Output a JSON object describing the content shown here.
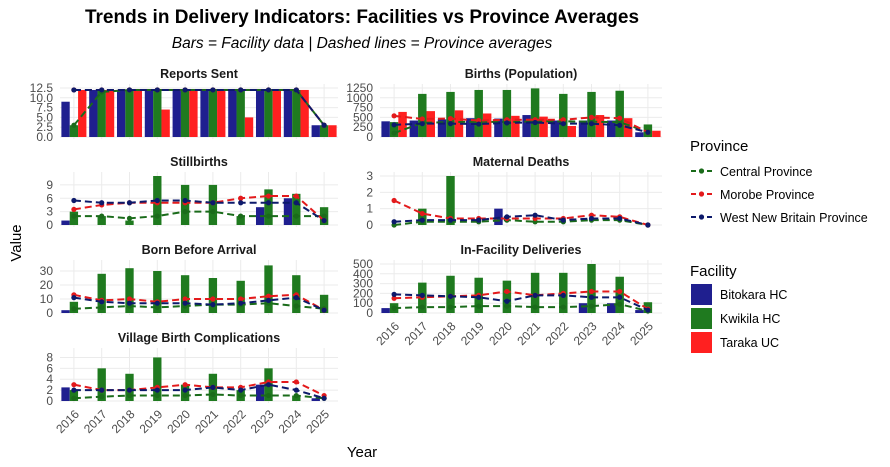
{
  "chart_data": {
    "type": "bar",
    "title": "Trends in Delivery Indicators: Facilities vs Province Averages",
    "subtitle": "Bars = Facility data | Dashed lines = Province averages",
    "xlabel": "Year",
    "ylabel": "Value",
    "years": [
      "2016",
      "2017",
      "2018",
      "2019",
      "2020",
      "2021",
      "2022",
      "2023",
      "2024",
      "2025"
    ],
    "legend_province_title": "Province",
    "legend_facility_title": "Facility",
    "provinces": [
      {
        "name": "Central Province",
        "color": "#1a6b1a"
      },
      {
        "name": "Morobe Province",
        "color": "#e31a1c"
      },
      {
        "name": "West New Britain Province",
        "color": "#0d1a6b"
      }
    ],
    "facilities": [
      {
        "name": "Bitokara HC",
        "color": "#1f1f8f"
      },
      {
        "name": "Kwikila HC",
        "color": "#1f7a1f"
      },
      {
        "name": "Taraka UC",
        "color": "#ff2020"
      }
    ],
    "panels": [
      {
        "title": "Reports Sent",
        "ylim": [
          0,
          12.5
        ],
        "yticks": [
          "0.0",
          "2.5",
          "5.0",
          "7.5",
          "10.0",
          "12.5"
        ],
        "bars": {
          "Bitokara HC": [
            9,
            12,
            12,
            12,
            12,
            12,
            12,
            12,
            12,
            3
          ],
          "Kwikila HC": [
            3,
            12,
            12,
            12,
            12,
            12,
            12,
            12,
            12,
            3
          ],
          "Taraka UC": [
            12,
            12,
            12,
            7,
            12,
            12,
            5,
            12,
            12,
            3
          ]
        },
        "lines": {
          "Central Province": [
            3,
            11.5,
            12,
            12,
            12,
            12,
            12,
            12,
            12,
            3
          ],
          "Morobe Province": [
            12,
            12,
            12,
            12,
            12,
            12,
            12,
            12,
            12,
            3
          ],
          "West New Britain Province": [
            12,
            12,
            12,
            12,
            12,
            12,
            12,
            12,
            12,
            3
          ]
        }
      },
      {
        "title": "Births (Population)",
        "ylim": [
          0,
          1250
        ],
        "yticks": [
          "0",
          "250",
          "500",
          "750",
          "1000",
          "1250"
        ],
        "bars": {
          "Bitokara HC": [
            400,
            420,
            450,
            480,
            470,
            560,
            420,
            420,
            420,
            120
          ],
          "Kwikila HC": [
            380,
            1100,
            1150,
            1200,
            1200,
            1240,
            1100,
            1150,
            1180,
            320
          ],
          "Taraka UC": [
            640,
            660,
            680,
            600,
            540,
            520,
            280,
            560,
            480,
            160
          ]
        },
        "lines": {
          "Central Province": [
            100,
            360,
            380,
            390,
            380,
            400,
            400,
            390,
            380,
            130
          ],
          "Morobe Province": [
            540,
            460,
            470,
            420,
            440,
            440,
            440,
            500,
            480,
            120
          ],
          "West New Britain Province": [
            310,
            340,
            340,
            330,
            360,
            370,
            340,
            340,
            300,
            120
          ]
        }
      },
      {
        "title": "Stillbirths",
        "ylim": [
          0,
          11
        ],
        "yticks": [
          "0",
          "3",
          "6",
          "9"
        ],
        "bars": {
          "Bitokara HC": [
            1,
            0,
            0,
            0,
            0,
            0,
            0,
            4,
            6,
            0
          ],
          "Kwikila HC": [
            3,
            2,
            1,
            11,
            9,
            9,
            2,
            8,
            7,
            4
          ],
          "Taraka UC": [
            0,
            0,
            0,
            0,
            0,
            0,
            0,
            0,
            0,
            0
          ]
        },
        "lines": {
          "Central Province": [
            2,
            2,
            1.5,
            2,
            3,
            3,
            2,
            2,
            2,
            2
          ],
          "Morobe Province": [
            3.5,
            4.5,
            5,
            5,
            5,
            5,
            6,
            6.5,
            6.5,
            1
          ],
          "West New Britain Province": [
            5.5,
            5,
            5,
            5.5,
            5.5,
            5,
            5,
            5,
            5,
            1
          ]
        }
      },
      {
        "title": "Maternal Deaths",
        "ylim": [
          0,
          3
        ],
        "yticks": [
          "0",
          "1",
          "2",
          "3"
        ],
        "bars": {
          "Bitokara HC": [
            0,
            0,
            0,
            0,
            1,
            0,
            0,
            0,
            0,
            0
          ],
          "Kwikila HC": [
            0,
            1,
            3,
            0,
            0,
            0,
            0,
            0,
            0,
            0
          ],
          "Taraka UC": [
            0,
            0,
            0,
            0,
            0,
            0,
            0,
            0,
            0,
            0
          ]
        },
        "lines": {
          "Central Province": [
            0,
            0.2,
            0.2,
            0.2,
            0.3,
            0.2,
            0.2,
            0.3,
            0.3,
            0
          ],
          "Morobe Province": [
            1.5,
            0.7,
            0.4,
            0.4,
            0.4,
            0.4,
            0.4,
            0.6,
            0.5,
            0
          ],
          "West New Britain Province": [
            0.2,
            0.3,
            0.3,
            0.3,
            0.5,
            0.6,
            0.3,
            0.4,
            0.4,
            0
          ]
        }
      },
      {
        "title": "Born Before Arrival",
        "ylim": [
          0,
          35
        ],
        "yticks": [
          "0",
          "10",
          "20",
          "30"
        ],
        "bars": {
          "Bitokara HC": [
            2,
            0,
            0,
            0,
            0,
            0,
            0,
            0,
            0,
            0
          ],
          "Kwikila HC": [
            8,
            28,
            32,
            30,
            27,
            25,
            23,
            34,
            27,
            13
          ],
          "Taraka UC": [
            0,
            0,
            0,
            0,
            0,
            0,
            0,
            0,
            0,
            0
          ]
        },
        "lines": {
          "Central Province": [
            3,
            4,
            5,
            4,
            5,
            6,
            6,
            7,
            5,
            3
          ],
          "Morobe Province": [
            13,
            9,
            10,
            8,
            10,
            10,
            10,
            12,
            13,
            2
          ],
          "West New Britain Province": [
            11,
            8,
            7,
            7,
            7,
            6,
            7,
            9,
            11,
            2
          ]
        }
      },
      {
        "title": "In-Facility Deliveries",
        "ylim": [
          0,
          500
        ],
        "yticks": [
          "0",
          "100",
          "200",
          "300",
          "400",
          "500"
        ],
        "bars": {
          "Bitokara HC": [
            50,
            0,
            0,
            0,
            0,
            0,
            0,
            100,
            100,
            30
          ],
          "Kwikila HC": [
            100,
            310,
            380,
            360,
            330,
            410,
            410,
            500,
            370,
            110
          ],
          "Taraka UC": [
            0,
            0,
            0,
            0,
            0,
            0,
            0,
            0,
            0,
            0
          ]
        },
        "lines": {
          "Central Province": [
            50,
            60,
            60,
            70,
            70,
            60,
            60,
            70,
            90,
            20
          ],
          "Morobe Province": [
            150,
            160,
            170,
            180,
            220,
            180,
            200,
            220,
            220,
            40
          ],
          "West New Britain Province": [
            190,
            180,
            170,
            160,
            120,
            180,
            180,
            160,
            160,
            30
          ]
        }
      },
      {
        "title": "Village Birth Complications",
        "ylim": [
          0,
          9
        ],
        "yticks": [
          "0",
          "2",
          "4",
          "6",
          "8"
        ],
        "bars": {
          "Bitokara HC": [
            2.5,
            0,
            0,
            0,
            0,
            0,
            0,
            3,
            0,
            0.5
          ],
          "Kwikila HC": [
            2,
            6,
            5,
            8,
            3,
            5,
            2,
            6,
            1,
            0
          ],
          "Taraka UC": [
            0,
            0,
            0,
            0,
            0,
            0,
            0,
            0,
            0,
            0
          ]
        },
        "lines": {
          "Central Province": [
            0.5,
            0.8,
            1,
            1,
            1,
            1.2,
            1,
            1,
            1,
            0.5
          ],
          "Morobe Province": [
            3,
            2,
            2,
            2.5,
            3,
            2.5,
            2.5,
            3.5,
            3.5,
            1
          ],
          "West New Britain Province": [
            2,
            2,
            2,
            2,
            2,
            2.5,
            2,
            3,
            2,
            0.5
          ]
        }
      }
    ]
  }
}
